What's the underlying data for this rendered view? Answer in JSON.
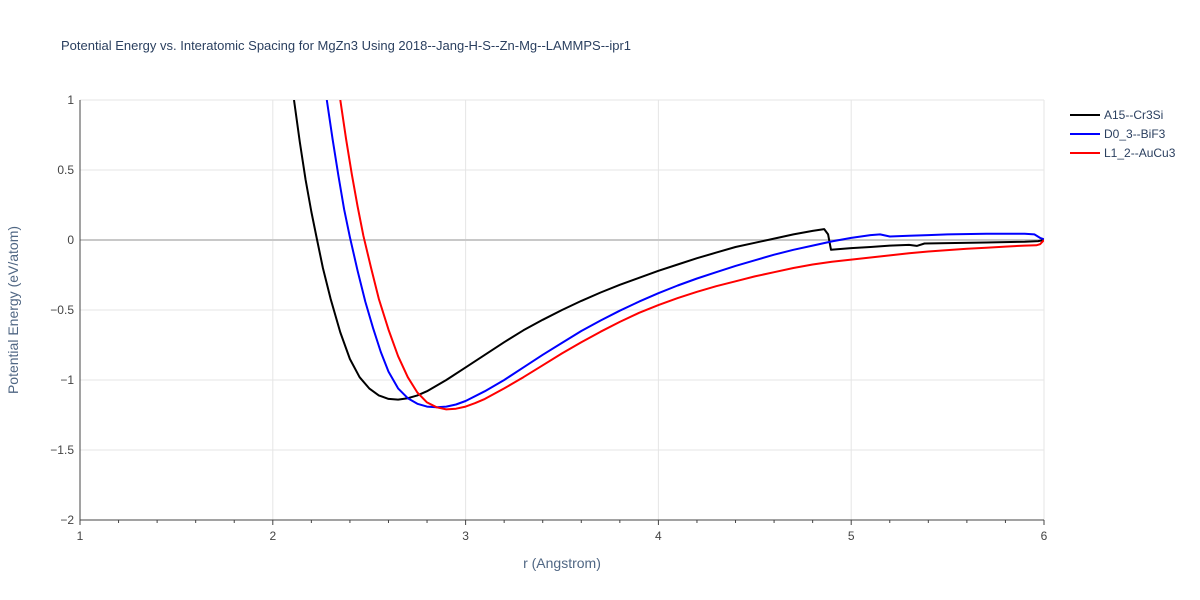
{
  "chart_data": {
    "type": "line",
    "title": "Potential Energy vs. Interatomic Spacing for MgZn3 Using 2018--Jang-H-S--Zn-Mg--LAMMPS--ipr1",
    "xlabel": "r (Angstrom)",
    "ylabel": "Potential Energy (eV/atom)",
    "xlim": [
      1,
      6
    ],
    "ylim": [
      -2,
      1
    ],
    "x_ticks": [
      1,
      2,
      3,
      4,
      5,
      6
    ],
    "x_tick_labels": [
      "1",
      "2",
      "3",
      "4",
      "5",
      "6"
    ],
    "y_ticks": [
      -2,
      -1.5,
      -1,
      -0.5,
      0,
      0.5,
      1
    ],
    "y_tick_labels": [
      "−2",
      "−1.5",
      "−1",
      "−0.5",
      "0",
      "0.5",
      "1"
    ],
    "grid": true,
    "legend_position": "top-right",
    "series": [
      {
        "name": "A15--Cr3Si",
        "color": "#000000",
        "points": [
          [
            2.11,
            1.0
          ],
          [
            2.14,
            0.7
          ],
          [
            2.17,
            0.43
          ],
          [
            2.2,
            0.2
          ],
          [
            2.23,
            0.0
          ],
          [
            2.26,
            -0.2
          ],
          [
            2.3,
            -0.42
          ],
          [
            2.35,
            -0.66
          ],
          [
            2.4,
            -0.85
          ],
          [
            2.45,
            -0.98
          ],
          [
            2.5,
            -1.06
          ],
          [
            2.55,
            -1.11
          ],
          [
            2.6,
            -1.135
          ],
          [
            2.65,
            -1.14
          ],
          [
            2.7,
            -1.13
          ],
          [
            2.75,
            -1.11
          ],
          [
            2.8,
            -1.08
          ],
          [
            2.9,
            -1.0
          ],
          [
            3.0,
            -0.91
          ],
          [
            3.1,
            -0.82
          ],
          [
            3.2,
            -0.73
          ],
          [
            3.3,
            -0.645
          ],
          [
            3.4,
            -0.57
          ],
          [
            3.5,
            -0.5
          ],
          [
            3.6,
            -0.435
          ],
          [
            3.7,
            -0.375
          ],
          [
            3.8,
            -0.32
          ],
          [
            3.9,
            -0.27
          ],
          [
            4.0,
            -0.22
          ],
          [
            4.1,
            -0.175
          ],
          [
            4.2,
            -0.13
          ],
          [
            4.3,
            -0.09
          ],
          [
            4.4,
            -0.05
          ],
          [
            4.5,
            -0.02
          ],
          [
            4.6,
            0.01
          ],
          [
            4.7,
            0.04
          ],
          [
            4.8,
            0.065
          ],
          [
            4.86,
            0.078
          ],
          [
            4.88,
            0.04
          ],
          [
            4.895,
            -0.07
          ],
          [
            5.0,
            -0.058
          ],
          [
            5.1,
            -0.05
          ],
          [
            5.2,
            -0.04
          ],
          [
            5.3,
            -0.035
          ],
          [
            5.34,
            -0.042
          ],
          [
            5.38,
            -0.025
          ],
          [
            5.5,
            -0.022
          ],
          [
            5.7,
            -0.018
          ],
          [
            5.9,
            -0.012
          ],
          [
            5.97,
            -0.008
          ],
          [
            6.0,
            0.0
          ]
        ]
      },
      {
        "name": "D0_3--BiF3",
        "color": "#0000ff",
        "points": [
          [
            2.28,
            1.0
          ],
          [
            2.31,
            0.72
          ],
          [
            2.34,
            0.46
          ],
          [
            2.37,
            0.22
          ],
          [
            2.4,
            0.02
          ],
          [
            2.44,
            -0.22
          ],
          [
            2.48,
            -0.44
          ],
          [
            2.52,
            -0.63
          ],
          [
            2.56,
            -0.8
          ],
          [
            2.6,
            -0.94
          ],
          [
            2.65,
            -1.06
          ],
          [
            2.7,
            -1.13
          ],
          [
            2.75,
            -1.17
          ],
          [
            2.8,
            -1.19
          ],
          [
            2.85,
            -1.195
          ],
          [
            2.9,
            -1.19
          ],
          [
            2.95,
            -1.175
          ],
          [
            3.0,
            -1.15
          ],
          [
            3.1,
            -1.08
          ],
          [
            3.2,
            -1.0
          ],
          [
            3.3,
            -0.91
          ],
          [
            3.4,
            -0.82
          ],
          [
            3.5,
            -0.735
          ],
          [
            3.6,
            -0.65
          ],
          [
            3.7,
            -0.575
          ],
          [
            3.8,
            -0.505
          ],
          [
            3.9,
            -0.44
          ],
          [
            4.0,
            -0.38
          ],
          [
            4.1,
            -0.325
          ],
          [
            4.2,
            -0.275
          ],
          [
            4.3,
            -0.23
          ],
          [
            4.4,
            -0.185
          ],
          [
            4.5,
            -0.145
          ],
          [
            4.6,
            -0.105
          ],
          [
            4.7,
            -0.07
          ],
          [
            4.8,
            -0.04
          ],
          [
            4.9,
            -0.01
          ],
          [
            5.0,
            0.015
          ],
          [
            5.1,
            0.035
          ],
          [
            5.15,
            0.04
          ],
          [
            5.2,
            0.025
          ],
          [
            5.3,
            0.03
          ],
          [
            5.4,
            0.035
          ],
          [
            5.5,
            0.04
          ],
          [
            5.7,
            0.045
          ],
          [
            5.9,
            0.045
          ],
          [
            5.95,
            0.04
          ],
          [
            5.98,
            0.015
          ],
          [
            6.0,
            0.005
          ]
        ]
      },
      {
        "name": "L1_2--AuCu3",
        "color": "#ff0000",
        "points": [
          [
            2.35,
            1.0
          ],
          [
            2.38,
            0.72
          ],
          [
            2.41,
            0.47
          ],
          [
            2.44,
            0.24
          ],
          [
            2.47,
            0.03
          ],
          [
            2.51,
            -0.2
          ],
          [
            2.55,
            -0.42
          ],
          [
            2.6,
            -0.64
          ],
          [
            2.65,
            -0.83
          ],
          [
            2.7,
            -0.98
          ],
          [
            2.75,
            -1.09
          ],
          [
            2.8,
            -1.16
          ],
          [
            2.85,
            -1.195
          ],
          [
            2.9,
            -1.21
          ],
          [
            2.95,
            -1.205
          ],
          [
            3.0,
            -1.19
          ],
          [
            3.05,
            -1.165
          ],
          [
            3.1,
            -1.135
          ],
          [
            3.2,
            -1.06
          ],
          [
            3.3,
            -0.98
          ],
          [
            3.4,
            -0.895
          ],
          [
            3.5,
            -0.81
          ],
          [
            3.6,
            -0.73
          ],
          [
            3.7,
            -0.655
          ],
          [
            3.8,
            -0.585
          ],
          [
            3.9,
            -0.52
          ],
          [
            4.0,
            -0.465
          ],
          [
            4.1,
            -0.415
          ],
          [
            4.2,
            -0.37
          ],
          [
            4.3,
            -0.33
          ],
          [
            4.4,
            -0.295
          ],
          [
            4.5,
            -0.26
          ],
          [
            4.6,
            -0.23
          ],
          [
            4.7,
            -0.2
          ],
          [
            4.8,
            -0.175
          ],
          [
            4.9,
            -0.155
          ],
          [
            5.0,
            -0.14
          ],
          [
            5.1,
            -0.125
          ],
          [
            5.2,
            -0.11
          ],
          [
            5.3,
            -0.095
          ],
          [
            5.4,
            -0.082
          ],
          [
            5.5,
            -0.072
          ],
          [
            5.6,
            -0.062
          ],
          [
            5.7,
            -0.055
          ],
          [
            5.8,
            -0.047
          ],
          [
            5.9,
            -0.04
          ],
          [
            5.96,
            -0.038
          ],
          [
            5.98,
            -0.03
          ],
          [
            6.0,
            0.0
          ]
        ]
      }
    ]
  }
}
